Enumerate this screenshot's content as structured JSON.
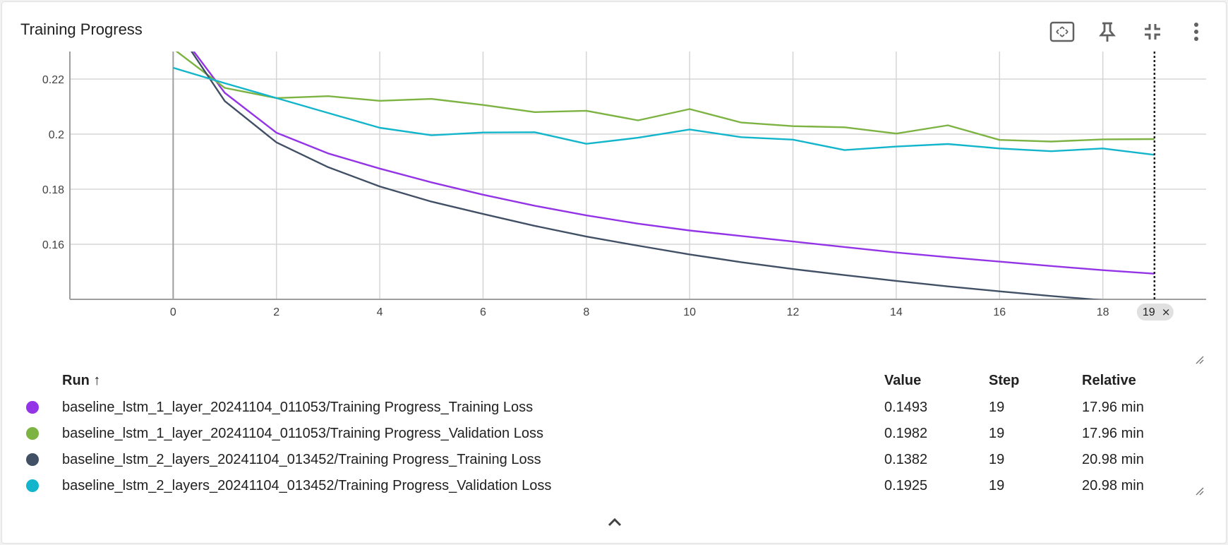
{
  "header": {
    "title": "Training Progress",
    "toolbar_icons": [
      "fit-to-data-icon",
      "pin-icon",
      "collapse-fullscreen-icon",
      "more-vert-icon"
    ]
  },
  "chart_data": {
    "type": "line",
    "title": "Training Progress",
    "xlabel": "",
    "ylabel": "",
    "xlim": [
      -2,
      20
    ],
    "ylim": [
      0.14,
      0.23
    ],
    "x_ticks": [
      0,
      2,
      4,
      6,
      8,
      10,
      12,
      14,
      16,
      18
    ],
    "y_ticks": [
      0.16,
      0.18,
      0.2,
      0.22
    ],
    "y_tick_labels": [
      "0.16",
      "0.18",
      "0.2",
      "0.22"
    ],
    "grid": true,
    "hover_step": 19,
    "hover_step_label": "19",
    "series": [
      {
        "color": "#9334e6",
        "x": [
          0,
          1,
          2,
          3,
          4,
          5,
          6,
          7,
          8,
          9,
          10,
          11,
          12,
          13,
          14,
          15,
          16,
          17,
          18,
          19
        ],
        "y": [
          0.24,
          0.215,
          0.2005,
          0.193,
          0.1875,
          0.1825,
          0.178,
          0.174,
          0.1705,
          0.1675,
          0.165,
          0.163,
          0.161,
          0.159,
          0.157,
          0.1553,
          0.1537,
          0.1521,
          0.1506,
          0.1493
        ]
      },
      {
        "color": "#7cb342",
        "x": [
          0,
          1,
          2,
          3,
          4,
          5,
          6,
          7,
          8,
          9,
          10,
          11,
          12,
          13,
          14,
          15,
          16,
          17,
          18,
          19
        ],
        "y": [
          0.231,
          0.2168,
          0.2131,
          0.2138,
          0.2121,
          0.2128,
          0.2106,
          0.208,
          0.2085,
          0.205,
          0.2091,
          0.2042,
          0.2029,
          0.2025,
          0.2002,
          0.2032,
          0.1979,
          0.1973,
          0.1981,
          0.1982
        ]
      },
      {
        "color": "#425066",
        "x": [
          0,
          1,
          2,
          3,
          4,
          5,
          6,
          7,
          8,
          9,
          10,
          11,
          12,
          13,
          14,
          15,
          16,
          17,
          18,
          19
        ],
        "y": [
          0.24,
          0.212,
          0.197,
          0.188,
          0.181,
          0.1755,
          0.171,
          0.1667,
          0.1628,
          0.1595,
          0.1563,
          0.1535,
          0.151,
          0.1488,
          0.1467,
          0.1447,
          0.1429,
          0.1412,
          0.1397,
          0.1382
        ]
      },
      {
        "color": "#12b5cb",
        "x": [
          0,
          1,
          2,
          3,
          4,
          5,
          6,
          7,
          8,
          9,
          10,
          11,
          12,
          13,
          14,
          15,
          16,
          17,
          18,
          19
        ],
        "y": [
          0.2241,
          0.2185,
          0.2131,
          0.2077,
          0.2023,
          0.1996,
          0.2006,
          0.2007,
          0.1965,
          0.1987,
          0.2017,
          0.1989,
          0.198,
          0.1942,
          0.1955,
          0.1964,
          0.1948,
          0.1938,
          0.1948,
          0.1925
        ]
      }
    ]
  },
  "legend": {
    "headers": {
      "run": "Run ↑",
      "value": "Value",
      "step": "Step",
      "relative": "Relative"
    },
    "rows": [
      {
        "color": "#9334e6",
        "run": "baseline_lstm_1_layer_20241104_011053/Training Progress_Training Loss",
        "value": "0.1493",
        "step": "19",
        "relative": "17.96 min"
      },
      {
        "color": "#7cb342",
        "run": "baseline_lstm_1_layer_20241104_011053/Training Progress_Validation Loss",
        "value": "0.1982",
        "step": "19",
        "relative": "17.96 min"
      },
      {
        "color": "#425066",
        "run": "baseline_lstm_2_layers_20241104_013452/Training Progress_Training Loss",
        "value": "0.1382",
        "step": "19",
        "relative": "20.98 min"
      },
      {
        "color": "#12b5cb",
        "run": "baseline_lstm_2_layers_20241104_013452/Training Progress_Validation Loss",
        "value": "0.1925",
        "step": "19",
        "relative": "20.98 min"
      }
    ]
  },
  "footer": {
    "collapse_icon": "chevron-up-icon"
  }
}
